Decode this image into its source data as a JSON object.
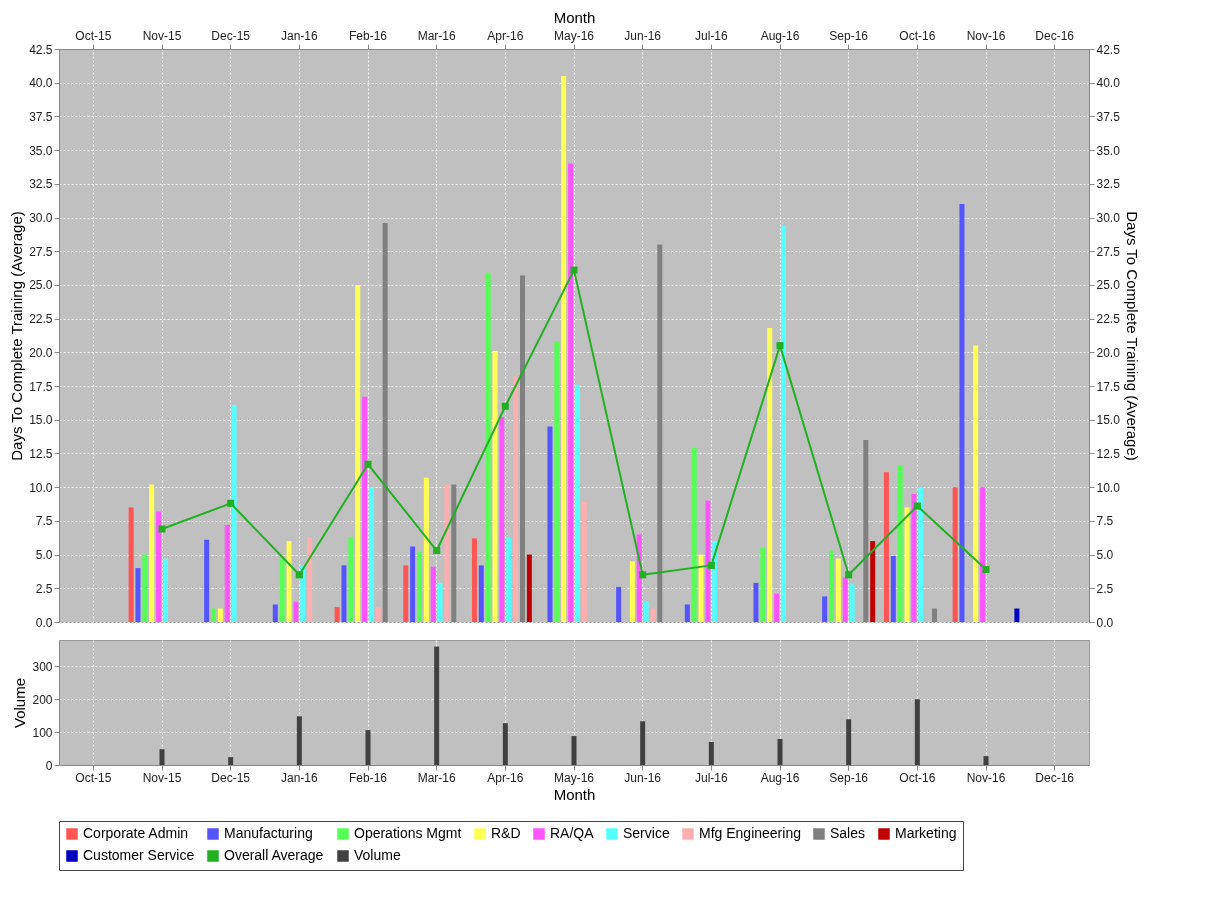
{
  "chart_data": [
    {
      "type": "bar",
      "xlabel": "Month",
      "ylabel": "Days To Complete Training (Average)",
      "y2label": "Days To Complete Training (Average)",
      "categories": [
        "Oct-15",
        "Nov-15",
        "Dec-15",
        "Jan-16",
        "Feb-16",
        "Mar-16",
        "Apr-16",
        "May-16",
        "Jun-16",
        "Jul-16",
        "Aug-16",
        "Sep-16",
        "Oct-16",
        "Nov-16",
        "Dec-16"
      ],
      "series": [
        {
          "name": "Corporate Admin",
          "color": "#ff5555",
          "values": [
            null,
            8.5,
            null,
            null,
            1.1,
            4.2,
            6.2,
            null,
            null,
            null,
            null,
            null,
            11.1,
            10.0,
            null
          ]
        },
        {
          "name": "Manufacturing",
          "color": "#5555ff",
          "values": [
            null,
            4.0,
            6.1,
            1.3,
            4.2,
            5.6,
            4.2,
            14.5,
            2.6,
            1.3,
            2.9,
            1.9,
            4.9,
            31.0,
            null
          ]
        },
        {
          "name": "Operations Mgmt",
          "color": "#55ff55",
          "values": [
            null,
            5.0,
            1.0,
            4.7,
            6.3,
            5.2,
            25.9,
            20.8,
            null,
            12.9,
            5.5,
            5.3,
            11.6,
            null,
            null
          ]
        },
        {
          "name": "R&D",
          "color": "#ffff55",
          "values": [
            null,
            10.2,
            1.0,
            6.0,
            25.0,
            10.7,
            20.1,
            40.5,
            4.5,
            5.0,
            21.8,
            4.7,
            8.5,
            20.5,
            null
          ]
        },
        {
          "name": "RA/QA",
          "color": "#ff55ff",
          "values": [
            null,
            8.2,
            7.2,
            1.5,
            16.7,
            4.1,
            15.2,
            34.0,
            6.5,
            9.0,
            2.1,
            3.3,
            9.5,
            10.0,
            null
          ]
        },
        {
          "name": "Service",
          "color": "#55ffff",
          "values": [
            null,
            4.7,
            16.1,
            4.2,
            10.0,
            2.9,
            6.3,
            17.6,
            1.5,
            6.0,
            29.4,
            2.8,
            10.0,
            null,
            null
          ]
        },
        {
          "name": "Mfg Engineering",
          "color": "#ffafaf",
          "values": [
            null,
            null,
            null,
            6.3,
            1.1,
            10.2,
            18.2,
            8.9,
            1.0,
            null,
            null,
            null,
            null,
            null,
            null
          ]
        },
        {
          "name": "Sales",
          "color": "#808080",
          "values": [
            null,
            null,
            null,
            null,
            29.6,
            10.2,
            25.7,
            null,
            28.0,
            null,
            null,
            13.5,
            1.0,
            null,
            null
          ]
        },
        {
          "name": "Marketing",
          "color": "#c00000",
          "values": [
            null,
            null,
            null,
            null,
            null,
            null,
            5.0,
            null,
            null,
            null,
            null,
            6.0,
            null,
            null,
            null
          ]
        },
        {
          "name": "Customer Service",
          "color": "#0000c0",
          "values": [
            null,
            null,
            null,
            null,
            null,
            null,
            null,
            null,
            null,
            null,
            null,
            null,
            null,
            1.0,
            null
          ]
        },
        {
          "name": "Overall Average",
          "color": "#22b022",
          "type": "line",
          "values": [
            null,
            6.9,
            8.8,
            3.5,
            11.7,
            5.3,
            16.0,
            26.1,
            3.5,
            4.2,
            20.5,
            3.5,
            8.6,
            3.9,
            null
          ]
        }
      ],
      "marker": "square",
      "line_style": "solid",
      "ylim": [
        0,
        42.5
      ],
      "yticks": [
        {
          "value": 0,
          "label": "0.0"
        },
        {
          "value": 2.5,
          "label": "2.5"
        },
        {
          "value": 5,
          "label": "5.0"
        },
        {
          "value": 7.5,
          "label": "7.5"
        },
        {
          "value": 10,
          "label": "10.0"
        },
        {
          "value": 12.5,
          "label": "12.5"
        },
        {
          "value": 15,
          "label": "15.0"
        },
        {
          "value": 17.5,
          "label": "17.5"
        },
        {
          "value": 20,
          "label": "20.0"
        },
        {
          "value": 22.5,
          "label": "22.5"
        },
        {
          "value": 25,
          "label": "25.0"
        },
        {
          "value": 27.5,
          "label": "27.5"
        },
        {
          "value": 30,
          "label": "30.0"
        },
        {
          "value": 32.5,
          "label": "32.5"
        },
        {
          "value": 35,
          "label": "35.0"
        },
        {
          "value": 37.5,
          "label": "37.5"
        },
        {
          "value": 40,
          "label": "40.0"
        },
        {
          "value": 42.5,
          "label": "42.5"
        }
      ],
      "y2lim": [
        0,
        42.5
      ],
      "y2ticks": [
        {
          "value": 0,
          "label": "0.0"
        },
        {
          "value": 2.5,
          "label": "2.5"
        },
        {
          "value": 5,
          "label": "5.0"
        },
        {
          "value": 7.5,
          "label": "7.5"
        },
        {
          "value": 10,
          "label": "10.0"
        },
        {
          "value": 12.5,
          "label": "12.5"
        },
        {
          "value": 15,
          "label": "15.0"
        },
        {
          "value": 17.5,
          "label": "17.5"
        },
        {
          "value": 20,
          "label": "20.0"
        },
        {
          "value": 22.5,
          "label": "22.5"
        },
        {
          "value": 25,
          "label": "25.0"
        },
        {
          "value": 27.5,
          "label": "27.5"
        },
        {
          "value": 30,
          "label": "30.0"
        },
        {
          "value": 32.5,
          "label": "32.5"
        },
        {
          "value": 35,
          "label": "35.0"
        },
        {
          "value": 37.5,
          "label": "37.5"
        },
        {
          "value": 40,
          "label": "40.0"
        },
        {
          "value": 42.5,
          "label": "42.5"
        }
      ],
      "grid": true,
      "legend": "bottom"
    },
    {
      "type": "bar",
      "xlabel": "Month",
      "ylabel": "Volume",
      "categories": [
        "Oct-15",
        "Nov-15",
        "Dec-15",
        "Jan-16",
        "Feb-16",
        "Mar-16",
        "Apr-16",
        "May-16",
        "Jun-16",
        "Jul-16",
        "Aug-16",
        "Sep-16",
        "Oct-16",
        "Nov-16",
        "Dec-16"
      ],
      "series": [
        {
          "name": "Volume",
          "color": "#404040",
          "values": [
            null,
            48,
            24,
            148,
            106,
            360,
            127,
            88,
            133,
            70,
            79,
            139,
            200,
            27,
            null
          ]
        }
      ],
      "ylim": [
        0,
        380
      ],
      "yticks": [
        0,
        100,
        200,
        300
      ],
      "grid": true
    }
  ]
}
